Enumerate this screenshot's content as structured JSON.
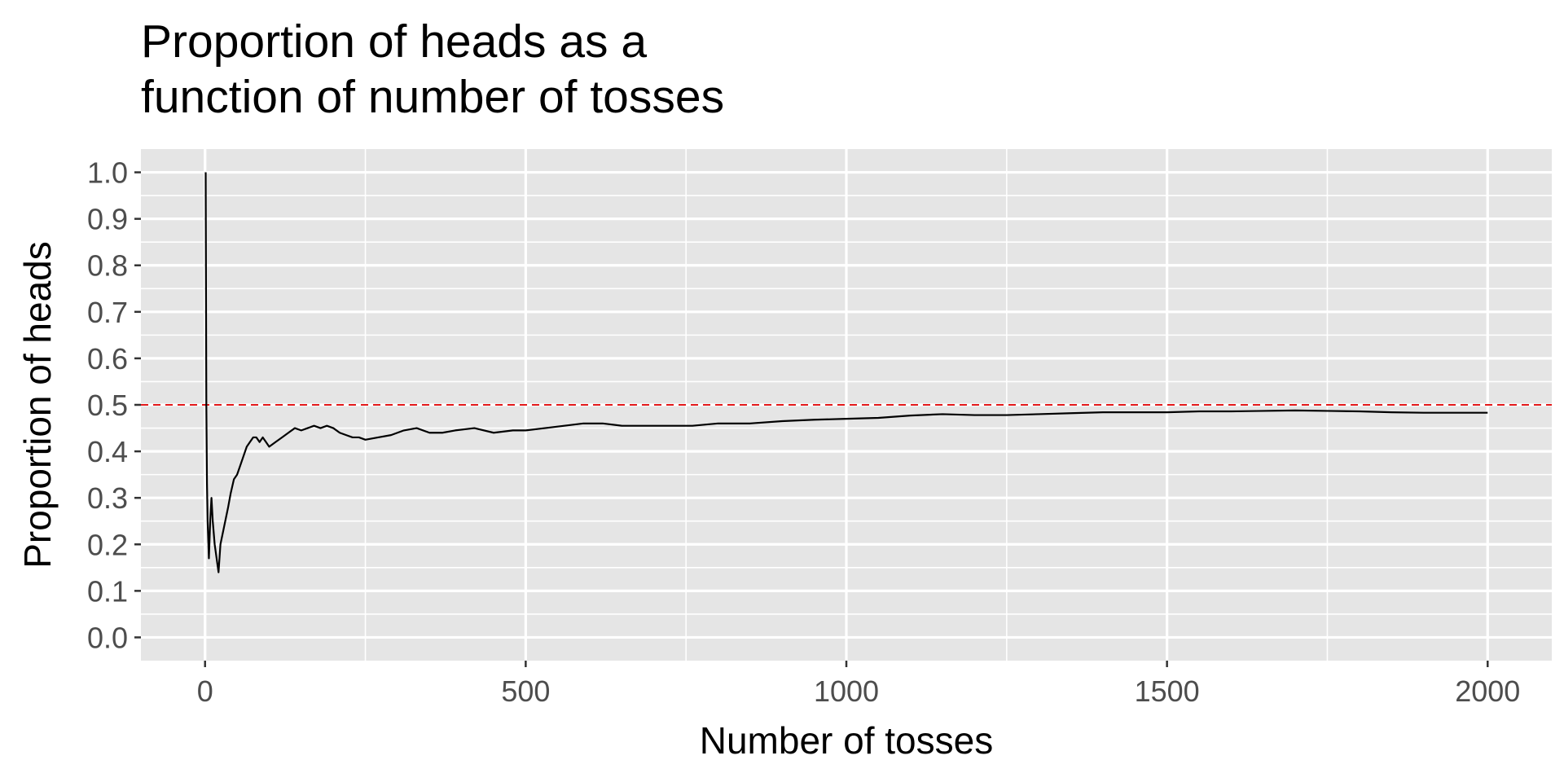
{
  "chart_data": {
    "type": "line",
    "title_lines": [
      "Proportion of heads as a",
      "function of number of tosses"
    ],
    "xlabel": "Number of tosses",
    "ylabel": "Proportion of heads",
    "xlim": [
      -100,
      2100
    ],
    "ylim": [
      -0.05,
      1.05
    ],
    "x_ticks": [
      0,
      500,
      1000,
      1500,
      2000
    ],
    "x_tick_labels": [
      "0",
      "500",
      "1000",
      "1500",
      "2000"
    ],
    "y_ticks": [
      0.0,
      0.1,
      0.2,
      0.3,
      0.4,
      0.5,
      0.6,
      0.7,
      0.8,
      0.9,
      1.0
    ],
    "y_tick_labels": [
      "0.0",
      "0.1",
      "0.2",
      "0.3",
      "0.4",
      "0.5",
      "0.6",
      "0.7",
      "0.8",
      "0.9",
      "1.0"
    ],
    "grid": true,
    "background": "#e5e5e5",
    "reference_line": {
      "y": 0.5,
      "color": "#e31a1c",
      "style": "dashed"
    },
    "series": [
      {
        "color": "#000000",
        "points": [
          [
            1,
            1.0
          ],
          [
            2,
            0.5
          ],
          [
            3,
            0.33
          ],
          [
            4,
            0.25
          ],
          [
            6,
            0.17
          ],
          [
            8,
            0.25
          ],
          [
            10,
            0.3
          ],
          [
            12,
            0.25
          ],
          [
            15,
            0.2
          ],
          [
            18,
            0.17
          ],
          [
            21,
            0.14
          ],
          [
            24,
            0.2
          ],
          [
            27,
            0.22
          ],
          [
            30,
            0.24
          ],
          [
            33,
            0.26
          ],
          [
            36,
            0.28
          ],
          [
            40,
            0.31
          ],
          [
            45,
            0.34
          ],
          [
            50,
            0.35
          ],
          [
            55,
            0.37
          ],
          [
            60,
            0.39
          ],
          [
            65,
            0.41
          ],
          [
            70,
            0.42
          ],
          [
            75,
            0.43
          ],
          [
            80,
            0.43
          ],
          [
            85,
            0.42
          ],
          [
            90,
            0.43
          ],
          [
            95,
            0.42
          ],
          [
            100,
            0.41
          ],
          [
            110,
            0.42
          ],
          [
            120,
            0.43
          ],
          [
            130,
            0.44
          ],
          [
            140,
            0.45
          ],
          [
            150,
            0.445
          ],
          [
            160,
            0.45
          ],
          [
            170,
            0.455
          ],
          [
            180,
            0.45
          ],
          [
            190,
            0.455
          ],
          [
            200,
            0.45
          ],
          [
            210,
            0.44
          ],
          [
            220,
            0.435
          ],
          [
            230,
            0.43
          ],
          [
            240,
            0.43
          ],
          [
            250,
            0.425
          ],
          [
            270,
            0.43
          ],
          [
            290,
            0.435
          ],
          [
            310,
            0.445
          ],
          [
            330,
            0.45
          ],
          [
            350,
            0.44
          ],
          [
            370,
            0.44
          ],
          [
            390,
            0.445
          ],
          [
            420,
            0.45
          ],
          [
            450,
            0.44
          ],
          [
            480,
            0.445
          ],
          [
            500,
            0.445
          ],
          [
            530,
            0.45
          ],
          [
            560,
            0.455
          ],
          [
            590,
            0.46
          ],
          [
            620,
            0.46
          ],
          [
            650,
            0.455
          ],
          [
            680,
            0.455
          ],
          [
            720,
            0.455
          ],
          [
            760,
            0.455
          ],
          [
            800,
            0.46
          ],
          [
            850,
            0.46
          ],
          [
            900,
            0.465
          ],
          [
            950,
            0.468
          ],
          [
            1000,
            0.47
          ],
          [
            1050,
            0.472
          ],
          [
            1100,
            0.477
          ],
          [
            1150,
            0.48
          ],
          [
            1200,
            0.478
          ],
          [
            1250,
            0.478
          ],
          [
            1300,
            0.48
          ],
          [
            1350,
            0.482
          ],
          [
            1400,
            0.484
          ],
          [
            1450,
            0.484
          ],
          [
            1500,
            0.484
          ],
          [
            1550,
            0.486
          ],
          [
            1600,
            0.486
          ],
          [
            1650,
            0.487
          ],
          [
            1700,
            0.488
          ],
          [
            1750,
            0.487
          ],
          [
            1800,
            0.486
          ],
          [
            1850,
            0.484
          ],
          [
            1900,
            0.483
          ],
          [
            1950,
            0.483
          ],
          [
            2000,
            0.483
          ]
        ]
      }
    ]
  }
}
